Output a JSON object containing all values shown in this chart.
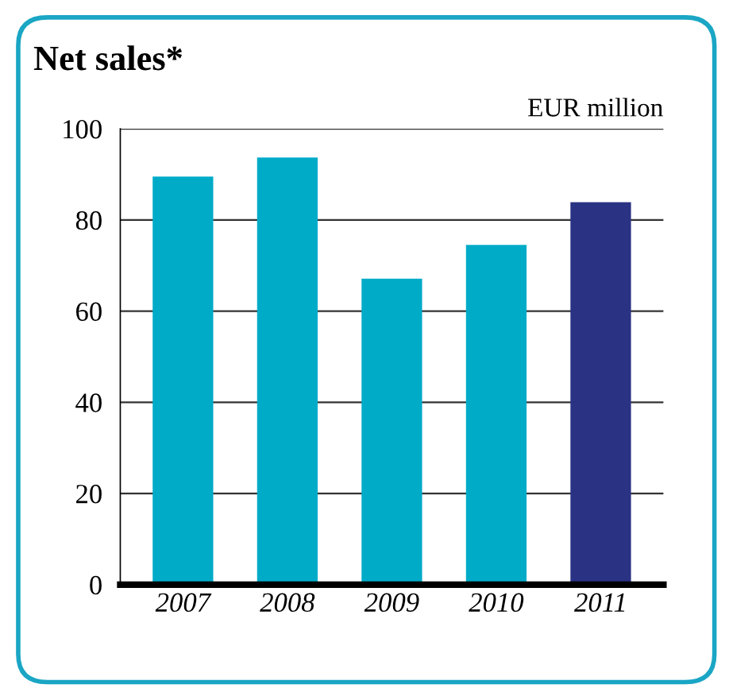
{
  "chart_data": {
    "type": "bar",
    "title": "Net sales*",
    "ylabel": "EUR million",
    "categories": [
      "2007",
      "2008",
      "2009",
      "2010",
      "2011"
    ],
    "values": [
      89.5,
      93.7,
      67.1,
      74.5,
      83.9
    ],
    "colors": [
      "#00abc8",
      "#00abc8",
      "#00abc8",
      "#00abc8",
      "#2a3283"
    ],
    "ylim": [
      0,
      100
    ],
    "yticks": [
      0,
      20,
      40,
      60,
      80,
      100
    ],
    "grid": "y"
  }
}
